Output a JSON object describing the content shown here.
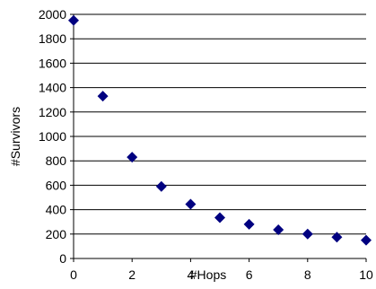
{
  "chart_data": {
    "type": "scatter",
    "title": "",
    "xlabel": "#Hops",
    "ylabel": "#Survivors",
    "xlim": [
      0,
      10
    ],
    "ylim": [
      0,
      2000
    ],
    "x_ticks": [
      0,
      2,
      4,
      6,
      8,
      10
    ],
    "y_ticks": [
      0,
      200,
      400,
      600,
      800,
      1000,
      1200,
      1400,
      1600,
      1800,
      2000
    ],
    "grid": "horizontal",
    "legend": "none",
    "marker": "diamond",
    "marker_color": "#000080",
    "series": [
      {
        "x": [
          0,
          1,
          2,
          3,
          4,
          5,
          6,
          7,
          8,
          9,
          10
        ],
        "y": [
          1950,
          1330,
          830,
          590,
          445,
          335,
          280,
          235,
          200,
          175,
          150
        ]
      }
    ]
  }
}
